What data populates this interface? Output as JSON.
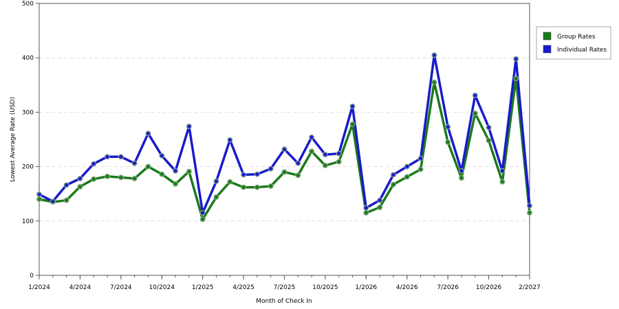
{
  "chart_data": {
    "type": "line",
    "title": "",
    "xlabel": "Month of Check In",
    "ylabel": "Lowest Average Rate (USD)",
    "ylim": [
      0,
      500
    ],
    "yticks": [
      0,
      100,
      200,
      300,
      400,
      500
    ],
    "xticks": [
      "1/2024",
      "4/2024",
      "7/2024",
      "10/2024",
      "1/2025",
      "4/2025",
      "7/2025",
      "10/2025",
      "1/2026",
      "4/2026",
      "7/2026",
      "10/2026",
      "2/2027"
    ],
    "grid": true,
    "legend_position": "right",
    "x": [
      "1/2024",
      "2/2024",
      "3/2024",
      "4/2024",
      "5/2024",
      "6/2024",
      "7/2024",
      "8/2024",
      "9/2024",
      "10/2024",
      "11/2024",
      "12/2024",
      "1/2025",
      "2/2025",
      "3/2025",
      "4/2025",
      "5/2025",
      "6/2025",
      "7/2025",
      "8/2025",
      "9/2025",
      "10/2025",
      "11/2025",
      "12/2025",
      "1/2026",
      "2/2026",
      "3/2026",
      "4/2026",
      "5/2026",
      "6/2026",
      "7/2026",
      "8/2026",
      "9/2026",
      "10/2026",
      "11/2026",
      "12/2026",
      "1/2027"
    ],
    "series": [
      {
        "name": "Group Rates",
        "color": "#1a7a1a",
        "values": [
          140,
          135,
          138,
          163,
          177,
          182,
          180,
          178,
          200,
          186,
          168,
          191,
          103,
          144,
          172,
          162,
          162,
          164,
          190,
          184,
          228,
          202,
          209,
          278,
          115,
          125,
          167,
          181,
          195,
          355,
          245,
          179,
          298,
          248,
          172,
          362,
          115
        ]
      },
      {
        "name": "Individual Rates",
        "color": "#1a1acc",
        "values": [
          149,
          136,
          166,
          178,
          205,
          218,
          218,
          206,
          261,
          220,
          192,
          274,
          115,
          173,
          249,
          185,
          186,
          196,
          232,
          206,
          254,
          222,
          224,
          311,
          124,
          138,
          185,
          200,
          215,
          405,
          273,
          192,
          331,
          272,
          192,
          398,
          128
        ]
      }
    ]
  }
}
